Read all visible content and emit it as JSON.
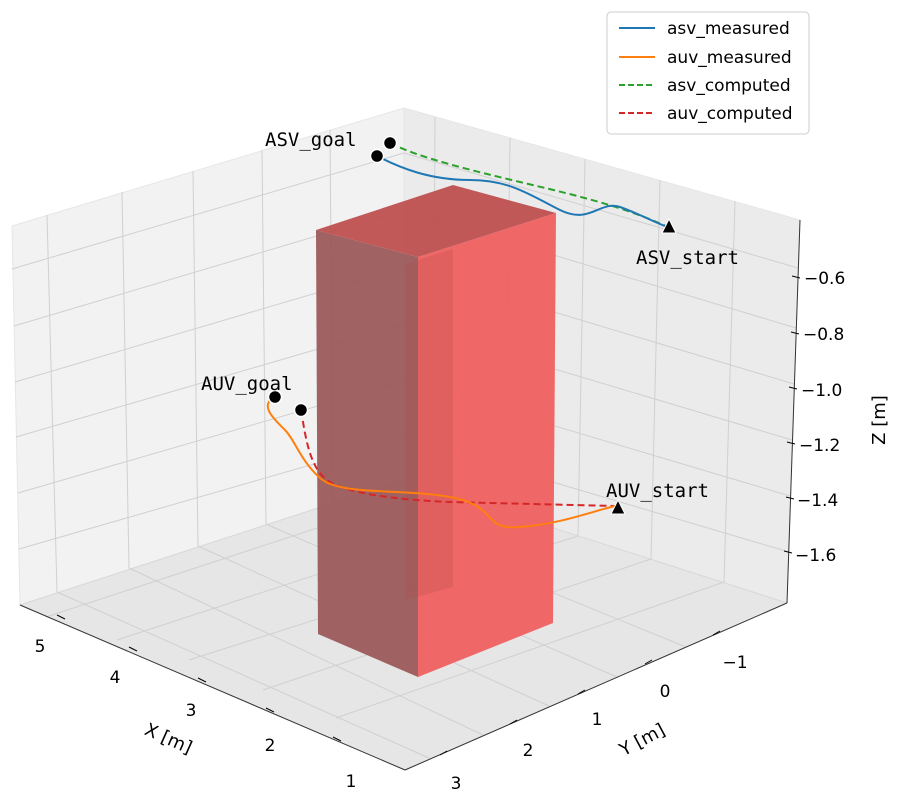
{
  "chart_data": {
    "type": "line3d",
    "axes": {
      "x": {
        "label": "X [m]",
        "ticks": [
          "1",
          "2",
          "3",
          "4",
          "5"
        ]
      },
      "y": {
        "label": "Y [m]",
        "ticks": [
          "3",
          "2",
          "1",
          "0",
          "−1"
        ]
      },
      "z": {
        "label": "Z [m]",
        "ticks": [
          "−0.6",
          "−0.8",
          "−1.0",
          "−1.2",
          "−1.4",
          "−1.6"
        ]
      }
    },
    "grid": true,
    "legend": {
      "placement": "top-right",
      "entries": [
        {
          "label": "asv_measured",
          "color": "#1f77b4",
          "dash": "solid"
        },
        {
          "label": "auv_measured",
          "color": "#ff7f0e",
          "dash": "solid"
        },
        {
          "label": "asv_computed",
          "color": "#2ca02c",
          "dash": "dashed"
        },
        {
          "label": "auv_computed",
          "color": "#d62728",
          "dash": "dashed"
        }
      ]
    },
    "annotations": [
      {
        "text": "ASV_goal",
        "marker": "circle"
      },
      {
        "text": "ASV_start",
        "marker": "triangle"
      },
      {
        "text": "AUV_goal",
        "marker": "circle"
      },
      {
        "text": "AUV_start",
        "marker": "triangle"
      }
    ],
    "obstacle": {
      "shape": "box",
      "color": "#ff0000"
    }
  }
}
